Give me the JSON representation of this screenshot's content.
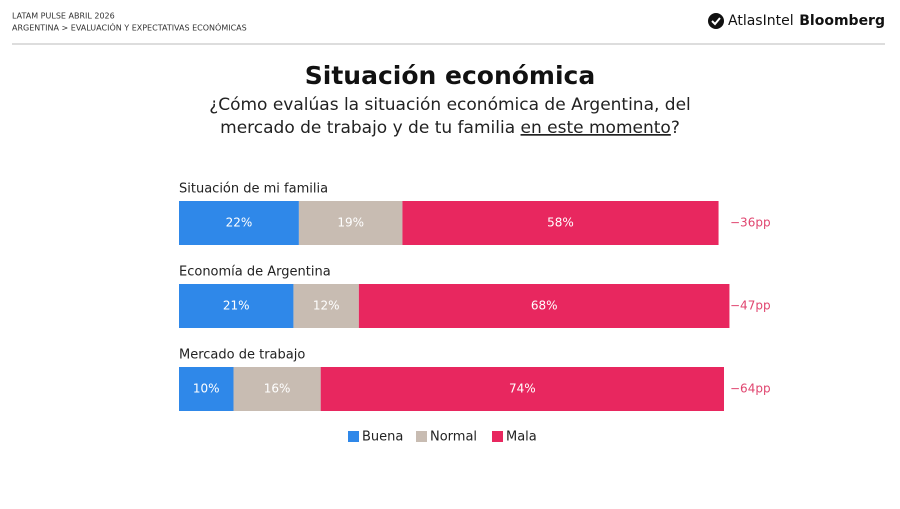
{
  "header": {
    "line1": "LATAM PULSE ABRIL 2026",
    "line2": "ARGENTINA > EVALUACIÓN Y EXPECTATIVAS ECONÓMICAS",
    "logo1": "AtlasIntel",
    "logo2": "Bloomberg"
  },
  "chart_data": {
    "type": "stacked_barh",
    "title": "Situación económica",
    "subtitle_line1": "¿Cómo evalúas la situación económica de Argentina, del",
    "subtitle_line2": "mercado de trabajo y de tu familia ",
    "subtitle_underlined": "en este momento",
    "subtitle_end": "?",
    "categories": [
      "Situación de mi familia",
      "Economía de Argentina",
      "Mercado de trabajo"
    ],
    "xlim": [
      0,
      100
    ],
    "series": [
      {
        "name": "Buena",
        "color": "#2f88e9",
        "values": [
          22,
          21,
          10
        ],
        "value_labels": [
          "22%",
          "21%",
          "10%"
        ]
      },
      {
        "name": "Normal",
        "color": "#c8bcb2",
        "values": [
          19,
          12,
          16
        ],
        "value_labels": [
          "19%",
          "12%",
          "16%"
        ]
      },
      {
        "name": "Mala",
        "color": "#e8275f",
        "values": [
          58,
          68,
          74
        ],
        "value_labels": [
          "58%",
          "68%",
          "74%"
        ]
      }
    ],
    "annotations": [
      "−36pp",
      "−47pp",
      "−64pp"
    ]
  }
}
